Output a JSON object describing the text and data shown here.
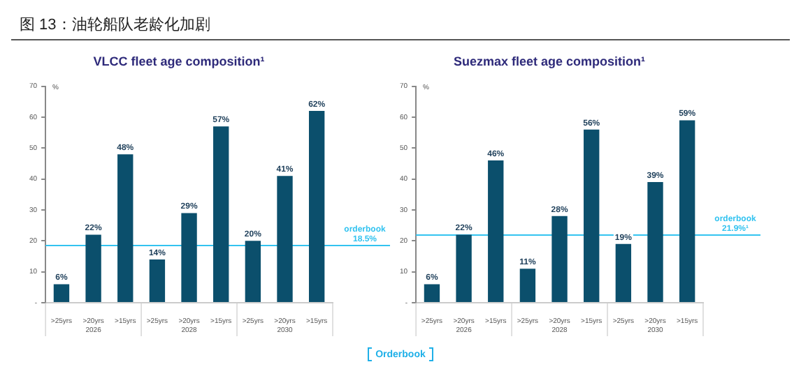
{
  "chart_data": [
    {
      "type": "bar",
      "title": "VLCC fleet age composition¹",
      "ylabel": "%",
      "categories": [
        ">25yrs",
        ">20yrs",
        ">15yrs",
        ">25yrs",
        ">20yrs",
        ">15yrs",
        ">25yrs",
        ">20yrs",
        ">15yrs"
      ],
      "values": [
        6,
        22,
        48,
        14,
        29,
        57,
        20,
        41,
        62
      ],
      "value_labels": [
        "6%",
        "22%",
        "48%",
        "14%",
        "29%",
        "57%",
        "20%",
        "41%",
        "62%"
      ],
      "color": "#0b4f6c",
      "ylim": [
        0,
        70
      ],
      "yticks": [
        {
          "value": 0,
          "label": "-"
        },
        10,
        20,
        30,
        40,
        50,
        60,
        70
      ],
      "grid": false,
      "ref_lines": [
        {
          "axis": "y",
          "value": 18.5,
          "label": "orderbook\n18.5%",
          "color": "#33c3f0"
        }
      ],
      "annotations": [
        "图 13：油轮船队老龄化加剧",
        "2026",
        "2028",
        "2030",
        "Orderbook"
      ]
    },
    {
      "type": "bar",
      "title": "Suezmax fleet age composition¹",
      "ylabel": "%",
      "categories": [
        ">25yrs",
        ">20yrs",
        ">15yrs",
        ">25yrs",
        ">20yrs",
        ">15yrs",
        ">25yrs",
        ">20yrs",
        ">15yrs"
      ],
      "values": [
        6,
        22,
        46,
        11,
        28,
        56,
        19,
        39,
        59
      ],
      "value_labels": [
        "6%",
        "22%",
        "46%",
        "11%",
        "28%",
        "56%",
        "19%",
        "39%",
        "59%"
      ],
      "color": "#0b4f6c",
      "ylim": [
        0,
        70
      ],
      "yticks": [
        {
          "value": 0,
          "label": "-"
        },
        10,
        20,
        30,
        40,
        50,
        60,
        70
      ],
      "grid": false,
      "ref_lines": [
        {
          "axis": "y",
          "value": 21.9,
          "label": "orderbook\n21.9%¹",
          "color": "#33c3f0"
        }
      ],
      "annotations": [
        "2026",
        "2028",
        "2030"
      ]
    }
  ]
}
